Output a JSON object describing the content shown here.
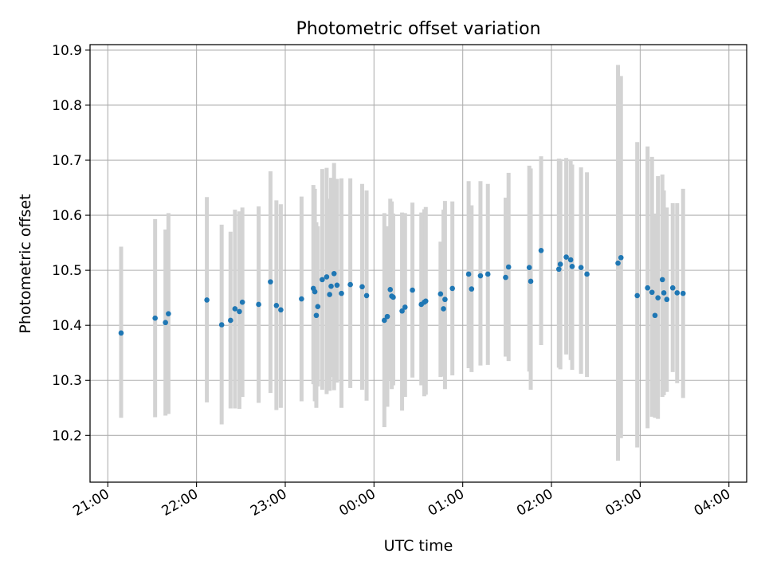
{
  "chart_data": {
    "type": "scatter",
    "title": "Photometric offset variation",
    "xlabel": "UTC time",
    "ylabel": "Photometric offset",
    "x_ticks": [
      "21:00",
      "22:00",
      "23:00",
      "00:00",
      "01:00",
      "02:00",
      "03:00",
      "04:00"
    ],
    "y_ticks": [
      "10.2",
      "10.3",
      "10.4",
      "10.5",
      "10.6",
      "10.7",
      "10.8",
      "10.9"
    ],
    "xlim": [
      "20:48",
      "04:12"
    ],
    "ylim": [
      10.115,
      10.91
    ],
    "grid": true,
    "point_color": "#1f77b4",
    "errorbar_color": "#d3d3d3",
    "series": [
      {
        "x": [
          "21:09",
          "21:32",
          "21:39",
          "21:41",
          "22:07",
          "22:17",
          "22:23",
          "22:26",
          "22:29",
          "22:31",
          "22:42",
          "22:50",
          "22:54",
          "22:57",
          "23:11",
          "23:19",
          "23:20",
          "23:21",
          "23:22",
          "23:25",
          "23:28",
          "23:30",
          "23:31",
          "23:33",
          "23:35",
          "23:38",
          "23:44",
          "23:52",
          "23:55",
          "00:07",
          "00:09",
          "00:11",
          "00:12",
          "00:13",
          "00:19",
          "00:21",
          "00:26",
          "00:32",
          "00:34",
          "00:35",
          "00:45",
          "00:47",
          "00:48",
          "00:53",
          "01:04",
          "01:06",
          "01:12",
          "01:17",
          "01:29",
          "01:31",
          "01:45",
          "01:46",
          "01:53",
          "02:05",
          "02:06",
          "02:10",
          "02:13",
          "02:14",
          "02:20",
          "02:24",
          "02:45",
          "02:47",
          "02:58",
          "03:05",
          "03:08",
          "03:10",
          "03:12",
          "03:15",
          "03:16",
          "03:18",
          "03:22",
          "03:25",
          "03:29"
        ],
        "y": [
          10.386,
          10.413,
          10.405,
          10.421,
          10.446,
          10.401,
          10.409,
          10.43,
          10.425,
          10.442,
          10.438,
          10.479,
          10.436,
          10.428,
          10.448,
          10.467,
          10.461,
          10.418,
          10.434,
          10.483,
          10.488,
          10.456,
          10.471,
          10.494,
          10.473,
          10.458,
          10.474,
          10.47,
          10.454,
          10.409,
          10.416,
          10.465,
          10.453,
          10.451,
          10.426,
          10.433,
          10.464,
          10.438,
          10.442,
          10.444,
          10.457,
          10.43,
          10.447,
          10.467,
          10.493,
          10.466,
          10.49,
          10.493,
          10.487,
          10.506,
          10.505,
          10.48,
          10.536,
          10.502,
          10.511,
          10.524,
          10.519,
          10.507,
          10.505,
          10.493,
          10.513,
          10.523,
          10.454,
          10.468,
          10.46,
          10.418,
          10.45,
          10.483,
          10.459,
          10.447,
          10.468,
          10.459,
          10.458
        ],
        "err_low": [
          10.232,
          10.233,
          10.236,
          10.239,
          10.26,
          10.22,
          10.249,
          10.249,
          10.248,
          10.27,
          10.259,
          10.277,
          10.246,
          10.25,
          10.262,
          10.293,
          10.262,
          10.25,
          10.289,
          10.283,
          10.275,
          10.281,
          10.306,
          10.282,
          10.296,
          10.25,
          10.286,
          10.283,
          10.263,
          10.215,
          10.252,
          10.301,
          10.284,
          10.291,
          10.245,
          10.27,
          10.305,
          10.291,
          10.271,
          10.274,
          10.306,
          10.307,
          10.284,
          10.309,
          10.322,
          10.315,
          10.327,
          10.328,
          10.343,
          10.335,
          10.316,
          10.283,
          10.364,
          10.323,
          10.32,
          10.347,
          10.337,
          10.319,
          10.312,
          10.306,
          10.154,
          10.195,
          10.178,
          10.213,
          10.234,
          10.232,
          10.23,
          10.27,
          10.273,
          10.279,
          10.315,
          10.295,
          10.268
        ],
        "err_high": [
          10.543,
          10.593,
          10.574,
          10.604,
          10.633,
          10.583,
          10.57,
          10.61,
          10.607,
          10.614,
          10.616,
          10.68,
          10.627,
          10.62,
          10.634,
          10.655,
          10.648,
          10.587,
          10.58,
          10.684,
          10.686,
          10.63,
          10.668,
          10.695,
          10.666,
          10.667,
          10.667,
          10.657,
          10.645,
          10.604,
          10.58,
          10.63,
          10.625,
          10.603,
          10.605,
          10.604,
          10.623,
          10.605,
          10.611,
          10.615,
          10.552,
          10.61,
          10.626,
          10.625,
          10.662,
          10.618,
          10.662,
          10.657,
          10.632,
          10.677,
          10.69,
          10.685,
          10.707,
          10.703,
          10.702,
          10.704,
          10.7,
          10.692,
          10.687,
          10.678,
          10.873,
          10.853,
          10.733,
          10.725,
          10.706,
          10.603,
          10.671,
          10.674,
          10.645,
          10.614,
          10.622,
          10.622,
          10.648
        ]
      }
    ]
  }
}
